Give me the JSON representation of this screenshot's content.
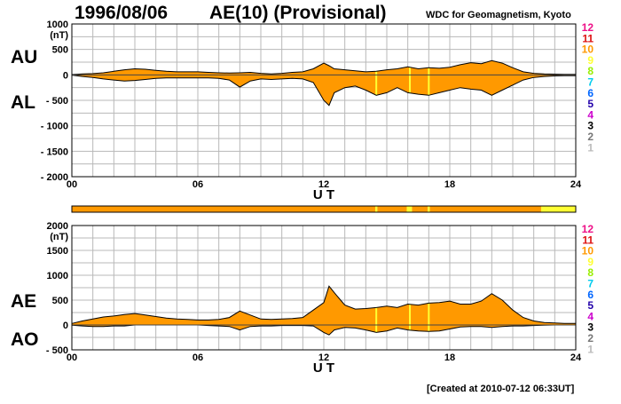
{
  "header": {
    "date": "1996/08/06",
    "title": "AE(10) (Provisional)",
    "institution": "WDC for Geomagnetism, Kyoto",
    "created": "[Created at 2010-07-12 06:33UT]"
  },
  "colors": {
    "fill": "#ff9900",
    "outline": "#000000",
    "grid": "#b8b8b8",
    "yellow": "#ffff33"
  },
  "chart_data": [
    {
      "type": "area",
      "panel": "upper",
      "unit_label": "(nT)",
      "side_labels": [
        "AU",
        "AL"
      ],
      "xlabel": "U T",
      "xlim": [
        0,
        24
      ],
      "x_ticks": [
        "00",
        "06",
        "12",
        "18",
        "24"
      ],
      "ylim": [
        -2000,
        1000
      ],
      "y_ticks": [
        "1000",
        "500",
        "0",
        "- 500",
        "- 1000",
        "- 1500",
        "- 2000"
      ],
      "y_tick_values": [
        1000,
        500,
        0,
        -500,
        -1000,
        -1500,
        -2000
      ],
      "x": [
        0,
        0.5,
        1,
        1.5,
        2,
        2.5,
        3,
        3.5,
        4,
        4.5,
        5,
        5.5,
        6,
        6.5,
        7,
        7.5,
        8,
        8.5,
        9,
        9.5,
        10,
        10.5,
        11,
        11.5,
        12,
        12.25,
        12.5,
        13,
        13.5,
        14,
        14.5,
        15,
        15.5,
        16,
        16.5,
        17,
        17.5,
        18,
        18.5,
        19,
        19.5,
        20,
        20.5,
        21,
        21.5,
        22,
        22.5,
        23,
        23.5,
        24
      ],
      "series": [
        {
          "name": "AU",
          "values": [
            5,
            20,
            25,
            40,
            70,
            100,
            120,
            110,
            90,
            70,
            60,
            60,
            60,
            50,
            40,
            35,
            40,
            50,
            30,
            20,
            30,
            50,
            60,
            120,
            230,
            180,
            120,
            100,
            80,
            60,
            70,
            100,
            120,
            160,
            120,
            140,
            130,
            150,
            200,
            240,
            220,
            280,
            230,
            140,
            60,
            30,
            20,
            15,
            10,
            10
          ]
        },
        {
          "name": "AL",
          "values": [
            -5,
            -30,
            -50,
            -80,
            -100,
            -120,
            -110,
            -90,
            -70,
            -60,
            -60,
            -60,
            -60,
            -60,
            -70,
            -100,
            -240,
            -120,
            -80,
            -90,
            -80,
            -70,
            -80,
            -150,
            -500,
            -600,
            -350,
            -250,
            -220,
            -300,
            -400,
            -350,
            -250,
            -350,
            -380,
            -400,
            -350,
            -300,
            -250,
            -280,
            -300,
            -400,
            -300,
            -200,
            -100,
            -50,
            -30,
            -20,
            -15,
            -15
          ]
        }
      ],
      "highlight_hours": [
        14.5,
        16.1,
        17.0
      ],
      "color_scale_labels": [
        "12",
        "11",
        "10",
        "9",
        "8",
        "7",
        "6",
        "5",
        "4",
        "3",
        "2",
        "1"
      ],
      "color_scale_colors": [
        "#ee1188",
        "#dd1111",
        "#ff9900",
        "#ffff33",
        "#99ee00",
        "#00ccee",
        "#0066ff",
        "#2200aa",
        "#cc00cc",
        "#000000",
        "#777777",
        "#bbbbbb"
      ]
    },
    {
      "type": "bar",
      "panel": "data-availability-strip",
      "xlim": [
        0,
        24
      ],
      "segments": [
        {
          "start": 0,
          "end": 14.45,
          "level": "10"
        },
        {
          "start": 14.45,
          "end": 14.55,
          "level": "9"
        },
        {
          "start": 14.55,
          "end": 15.95,
          "level": "10"
        },
        {
          "start": 15.95,
          "end": 16.2,
          "level": "9"
        },
        {
          "start": 16.2,
          "end": 16.95,
          "level": "10"
        },
        {
          "start": 16.95,
          "end": 17.05,
          "level": "9"
        },
        {
          "start": 17.05,
          "end": 22.35,
          "level": "10"
        },
        {
          "start": 22.35,
          "end": 24,
          "level": "9"
        }
      ]
    },
    {
      "type": "area",
      "panel": "lower",
      "unit_label": "(nT)",
      "side_labels": [
        "AE",
        "AO"
      ],
      "xlabel": "U T",
      "xlim": [
        0,
        24
      ],
      "x_ticks": [
        "00",
        "06",
        "12",
        "18",
        "24"
      ],
      "ylim": [
        -500,
        2000
      ],
      "y_ticks": [
        "2000",
        "1500",
        "1000",
        "500",
        "0",
        "- 500"
      ],
      "y_tick_values": [
        2000,
        1500,
        1000,
        500,
        0,
        -500
      ],
      "x": [
        0,
        0.5,
        1,
        1.5,
        2,
        2.5,
        3,
        3.5,
        4,
        4.5,
        5,
        5.5,
        6,
        6.5,
        7,
        7.5,
        8,
        8.5,
        9,
        9.5,
        10,
        10.5,
        11,
        11.5,
        12,
        12.25,
        12.5,
        13,
        13.5,
        14,
        14.5,
        15,
        15.5,
        16,
        16.5,
        17,
        17.5,
        18,
        18.5,
        19,
        19.5,
        20,
        20.5,
        21,
        21.5,
        22,
        22.5,
        23,
        23.5,
        24
      ],
      "series": [
        {
          "name": "AE",
          "values": [
            30,
            80,
            120,
            160,
            180,
            210,
            230,
            200,
            170,
            140,
            120,
            110,
            100,
            100,
            110,
            150,
            280,
            200,
            120,
            110,
            120,
            130,
            150,
            300,
            450,
            780,
            650,
            400,
            320,
            330,
            350,
            380,
            350,
            420,
            400,
            440,
            450,
            480,
            420,
            420,
            480,
            630,
            500,
            300,
            150,
            80,
            50,
            40,
            30,
            30
          ]
        },
        {
          "name": "AO",
          "values": [
            -5,
            -20,
            -30,
            -30,
            -20,
            -20,
            0,
            0,
            0,
            0,
            0,
            0,
            0,
            -10,
            -20,
            -30,
            -100,
            -30,
            -20,
            -20,
            -10,
            -10,
            -10,
            -20,
            -150,
            -200,
            -100,
            -50,
            -60,
            -100,
            -150,
            -120,
            -60,
            -100,
            -120,
            -130,
            -120,
            -80,
            -40,
            -30,
            -30,
            -50,
            -30,
            -20,
            -20,
            -10,
            -5,
            0,
            0,
            0
          ]
        }
      ],
      "highlight_hours": [
        14.5,
        16.1,
        17.0
      ],
      "color_scale_labels": [
        "12",
        "11",
        "10",
        "9",
        "8",
        "7",
        "6",
        "5",
        "4",
        "3",
        "2",
        "1"
      ],
      "color_scale_colors": [
        "#ee1188",
        "#dd1111",
        "#ff9900",
        "#ffff33",
        "#99ee00",
        "#00ccee",
        "#0066ff",
        "#2200aa",
        "#cc00cc",
        "#000000",
        "#777777",
        "#bbbbbb"
      ]
    }
  ]
}
